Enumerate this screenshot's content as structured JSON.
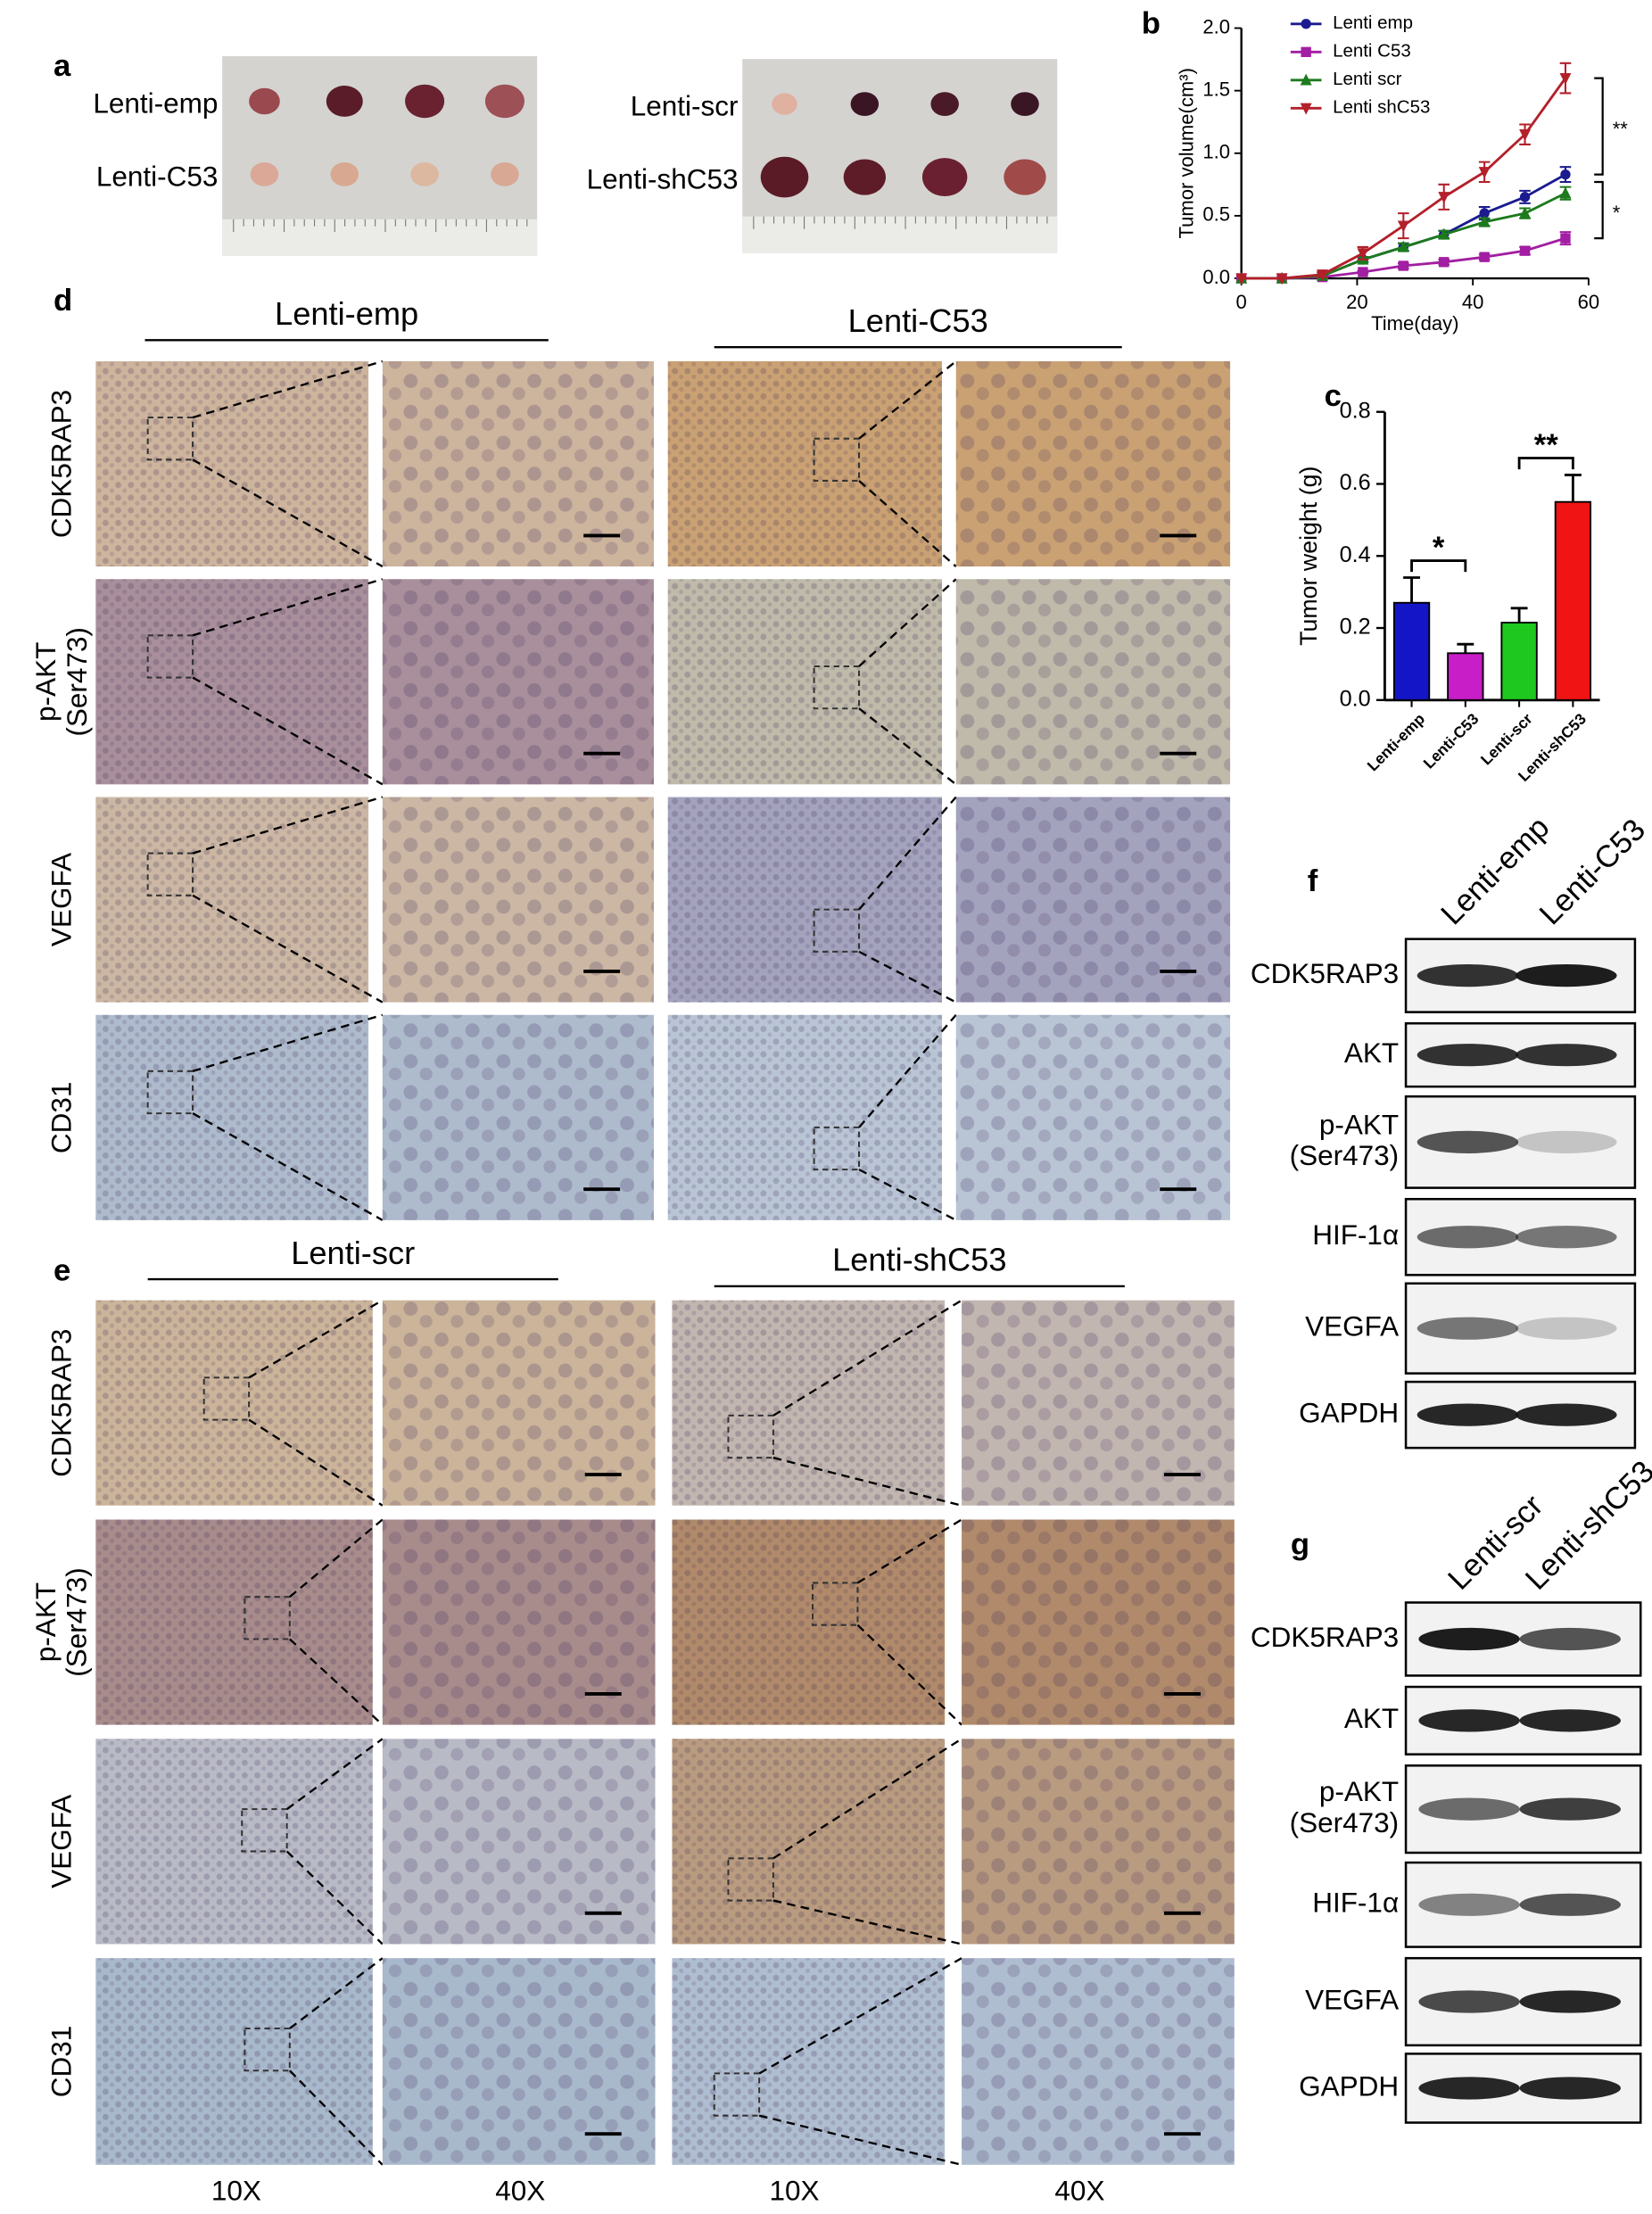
{
  "figure": {
    "panel_a": {
      "label": "a",
      "left_rows": [
        "Lenti-emp",
        "Lenti-C53"
      ],
      "right_rows": [
        "Lenti-scr",
        "Lenti-shC53"
      ]
    },
    "panel_b": {
      "label": "b"
    },
    "panel_c": {
      "label": "c"
    },
    "panel_d": {
      "label": "d",
      "groups": [
        "Lenti-emp",
        "Lenti-C53"
      ],
      "rows": [
        [
          "CDK5RAP3"
        ],
        [
          "p-AKT",
          "(Ser473)"
        ],
        [
          "VEGFA"
        ],
        [
          "CD31"
        ]
      ]
    },
    "panel_e": {
      "label": "e",
      "groups": [
        "Lenti-scr",
        "Lenti-shC53"
      ],
      "rows": [
        [
          "CDK5RAP3"
        ],
        [
          "p-AKT",
          "(Ser473)"
        ],
        [
          "VEGFA"
        ],
        [
          "CD31"
        ]
      ],
      "magnifications": [
        "10X",
        "40X",
        "10X",
        "40X"
      ]
    },
    "panel_f": {
      "label": "f",
      "columns": [
        "Lenti-emp",
        "Lenti-C53"
      ],
      "rows": [
        [
          "CDK5RAP3"
        ],
        [
          "AKT"
        ],
        [
          "p-AKT",
          "(Ser473)"
        ],
        [
          "HIF-1α"
        ],
        [
          "VEGFA"
        ],
        [
          "GAPDH"
        ]
      ]
    },
    "panel_g": {
      "label": "g",
      "columns": [
        "Lenti-scr",
        "Lenti-shC53"
      ],
      "rows": [
        [
          "CDK5RAP3"
        ],
        [
          "AKT"
        ],
        [
          "p-AKT",
          "(Ser473)"
        ],
        [
          "HIF-1α"
        ],
        [
          "VEGFA"
        ],
        [
          "GAPDH"
        ]
      ]
    }
  },
  "chart_data": [
    {
      "type": "line",
      "xlabel": "Time(day)",
      "ylabel": "Tumor volume(cm³)",
      "x": [
        0,
        7,
        14,
        21,
        28,
        35,
        42,
        49,
        56
      ],
      "xlim": [
        0,
        60
      ],
      "xticks": [
        0,
        20,
        40,
        60
      ],
      "ylim": [
        0,
        2
      ],
      "yticks": [
        {
          "value": 0,
          "label": "0.0"
        },
        0.5,
        {
          "value": 1,
          "label": "1.0"
        },
        1.5,
        {
          "value": 2,
          "label": "2.0"
        }
      ],
      "legend": "upper left",
      "series": [
        {
          "name": "Lenti emp",
          "color": "#1b1b8f",
          "marker": "circle",
          "values": [
            0,
            0,
            0.02,
            0.15,
            0.25,
            0.35,
            0.52,
            0.65,
            0.83
          ],
          "errors": [
            0,
            0,
            0.01,
            0.02,
            0.03,
            0.03,
            0.05,
            0.05,
            0.06
          ]
        },
        {
          "name": "Lenti C53",
          "color": "#a21ea2",
          "marker": "square",
          "values": [
            0,
            0,
            0.01,
            0.05,
            0.1,
            0.13,
            0.17,
            0.22,
            0.32
          ],
          "errors": [
            0,
            0,
            0.01,
            0.01,
            0.02,
            0.02,
            0.02,
            0.03,
            0.05
          ]
        },
        {
          "name": "Lenti scr",
          "color": "#1d7a1d",
          "marker": "triangle",
          "values": [
            0,
            0,
            0.02,
            0.15,
            0.25,
            0.35,
            0.45,
            0.52,
            0.68
          ],
          "errors": [
            0,
            0,
            0.01,
            0.02,
            0.03,
            0.03,
            0.03,
            0.04,
            0.05
          ]
        },
        {
          "name": "Lenti shC53",
          "color": "#b3202a",
          "marker": "triangle-down",
          "values": [
            0,
            0,
            0.03,
            0.2,
            0.42,
            0.65,
            0.85,
            1.15,
            1.6
          ],
          "errors": [
            0,
            0,
            0.02,
            0.05,
            0.1,
            0.1,
            0.08,
            0.08,
            0.12
          ]
        }
      ],
      "annotations": [
        {
          "text": "**"
        },
        {
          "text": "*"
        }
      ]
    },
    {
      "type": "bar",
      "ylabel": "Tumor weight (g)",
      "categories": [
        "Lenti-emp",
        "Lenti-C53",
        "Lenti-scr",
        "Lenti-shC53"
      ],
      "values": [
        0.27,
        0.13,
        0.215,
        0.55
      ],
      "errors": [
        0.07,
        0.025,
        0.04,
        0.075
      ],
      "colors": [
        "#1515c8",
        "#c81ec8",
        "#1ec81e",
        "#f01414"
      ],
      "ylim": [
        0,
        0.8
      ],
      "yticks": [
        {
          "value": 0,
          "label": "0.0"
        },
        0.2,
        0.4,
        0.6,
        0.8
      ],
      "annotations": [
        {
          "text": "*"
        },
        {
          "text": "**"
        }
      ]
    }
  ]
}
